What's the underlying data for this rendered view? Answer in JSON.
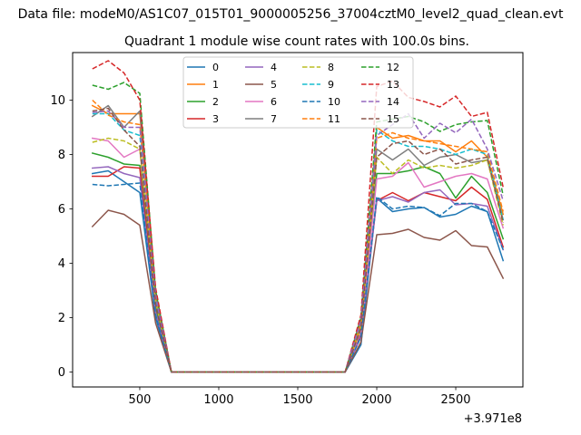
{
  "figure": {
    "suptitle": "Data file: modeM0/AS1C07_015T01_9000005256_37004cztM0_level2_quad_clean.evt",
    "title": "Quadrant 1 module wise count rates with 100.0s bins.",
    "x_offset_label": "+3.971e8"
  },
  "chart_data": {
    "type": "line",
    "title": "Quadrant 1 module wise count rates with 100.0s bins.",
    "xlabel": "",
    "ylabel": "",
    "xlim": [
      75,
      2925
    ],
    "ylim": [
      -0.55,
      11.75
    ],
    "x_offset": "+3.971e8",
    "grid": false,
    "legend_placement": "upper center, 4 columns",
    "x_ticks": [
      500,
      1000,
      1500,
      2000,
      2500
    ],
    "x_tick_labels": [
      "500",
      "1000",
      "1500",
      "2000",
      "2500"
    ],
    "y_ticks": [
      0,
      2,
      4,
      6,
      8,
      10
    ],
    "y_tick_labels": [
      "0",
      "2",
      "4",
      "6",
      "8",
      "10"
    ],
    "x": [
      200,
      300,
      400,
      500,
      600,
      700,
      800,
      900,
      1000,
      1100,
      1200,
      1300,
      1400,
      1500,
      1600,
      1700,
      1800,
      1900,
      2000,
      2100,
      2200,
      2300,
      2400,
      2500,
      2600,
      2700,
      2800
    ],
    "series": [
      {
        "name": "0",
        "color": "#1f77b4",
        "dash": "solid",
        "values": [
          7.3,
          7.4,
          7.0,
          6.6,
          2.0,
          0,
          0,
          0,
          0,
          0,
          0,
          0,
          0,
          0,
          0,
          0,
          0,
          1.0,
          6.4,
          5.9,
          6.0,
          6.05,
          5.7,
          5.8,
          6.1,
          5.9,
          4.1
        ]
      },
      {
        "name": "1",
        "color": "#ff7f0e",
        "dash": "solid",
        "values": [
          9.8,
          9.5,
          9.5,
          9.5,
          2.8,
          0,
          0,
          0,
          0,
          0,
          0,
          0,
          0,
          0,
          0,
          0,
          0,
          1.8,
          9.0,
          8.6,
          8.7,
          8.5,
          8.5,
          8.1,
          8.5,
          7.9,
          5.8
        ]
      },
      {
        "name": "2",
        "color": "#2ca02c",
        "dash": "solid",
        "values": [
          8.05,
          7.9,
          7.65,
          7.6,
          2.4,
          0,
          0,
          0,
          0,
          0,
          0,
          0,
          0,
          0,
          0,
          0,
          0,
          1.5,
          7.3,
          7.3,
          7.4,
          7.55,
          7.3,
          6.4,
          7.2,
          6.6,
          4.9
        ]
      },
      {
        "name": "3",
        "color": "#d62728",
        "dash": "solid",
        "values": [
          7.2,
          7.2,
          7.55,
          7.5,
          2.2,
          0,
          0,
          0,
          0,
          0,
          0,
          0,
          0,
          0,
          0,
          0,
          0,
          1.4,
          6.3,
          6.6,
          6.3,
          6.6,
          6.45,
          6.3,
          6.8,
          6.35,
          4.6
        ]
      },
      {
        "name": "4",
        "color": "#9467bd",
        "dash": "solid",
        "values": [
          7.5,
          7.55,
          7.3,
          7.15,
          2.2,
          0,
          0,
          0,
          0,
          0,
          0,
          0,
          0,
          0,
          0,
          0,
          0,
          1.3,
          6.3,
          6.45,
          6.25,
          6.6,
          6.7,
          6.15,
          6.2,
          6.1,
          4.5
        ]
      },
      {
        "name": "5",
        "color": "#8c564b",
        "dash": "solid",
        "values": [
          5.35,
          5.95,
          5.8,
          5.4,
          1.8,
          0,
          0,
          0,
          0,
          0,
          0,
          0,
          0,
          0,
          0,
          0,
          0,
          1.1,
          5.05,
          5.1,
          5.25,
          4.95,
          4.85,
          5.2,
          4.65,
          4.6,
          3.45
        ]
      },
      {
        "name": "6",
        "color": "#e377c2",
        "dash": "solid",
        "values": [
          8.6,
          8.5,
          7.9,
          8.2,
          2.6,
          0,
          0,
          0,
          0,
          0,
          0,
          0,
          0,
          0,
          0,
          0,
          0,
          1.5,
          7.1,
          7.2,
          7.7,
          6.8,
          7.0,
          7.2,
          7.3,
          7.1,
          5.3
        ]
      },
      {
        "name": "7",
        "color": "#7f7f7f",
        "dash": "solid",
        "values": [
          9.4,
          9.8,
          9.0,
          9.6,
          2.8,
          0,
          0,
          0,
          0,
          0,
          0,
          0,
          0,
          0,
          0,
          0,
          0,
          1.7,
          8.2,
          7.8,
          8.2,
          7.6,
          7.9,
          8.0,
          7.7,
          7.8,
          5.6
        ]
      },
      {
        "name": "8",
        "color": "#bcbd22",
        "dash": "dashed",
        "values": [
          8.45,
          8.6,
          8.5,
          8.2,
          2.6,
          0,
          0,
          0,
          0,
          0,
          0,
          0,
          0,
          0,
          0,
          0,
          0,
          1.6,
          7.9,
          7.3,
          7.8,
          7.5,
          7.6,
          7.5,
          7.6,
          7.8,
          5.4
        ]
      },
      {
        "name": "9",
        "color": "#17becf",
        "dash": "dashed",
        "values": [
          9.5,
          9.5,
          8.9,
          8.7,
          2.7,
          0,
          0,
          0,
          0,
          0,
          0,
          0,
          0,
          0,
          0,
          0,
          0,
          1.6,
          8.9,
          8.5,
          8.3,
          8.3,
          8.2,
          8.0,
          8.2,
          8.0,
          5.6
        ]
      },
      {
        "name": "10",
        "color": "#1f77b4",
        "dash": "dashed",
        "values": [
          6.9,
          6.85,
          6.9,
          6.95,
          2.1,
          0,
          0,
          0,
          0,
          0,
          0,
          0,
          0,
          0,
          0,
          0,
          0,
          1.3,
          6.45,
          6.0,
          6.1,
          6.05,
          5.75,
          6.2,
          6.2,
          5.9,
          4.5
        ]
      },
      {
        "name": "11",
        "color": "#ff7f0e",
        "dash": "dashed",
        "values": [
          10.0,
          9.45,
          9.2,
          9.1,
          2.9,
          0,
          0,
          0,
          0,
          0,
          0,
          0,
          0,
          0,
          0,
          0,
          0,
          1.8,
          8.6,
          8.8,
          8.6,
          8.5,
          8.4,
          8.3,
          8.2,
          8.1,
          5.9
        ]
      },
      {
        "name": "12",
        "color": "#2ca02c",
        "dash": "dashed",
        "values": [
          10.55,
          10.4,
          10.65,
          10.25,
          3.0,
          0,
          0,
          0,
          0,
          0,
          0,
          0,
          0,
          0,
          0,
          0,
          0,
          2.0,
          9.2,
          9.3,
          9.4,
          9.2,
          8.85,
          9.1,
          9.2,
          9.25,
          6.5
        ]
      },
      {
        "name": "13",
        "color": "#d62728",
        "dash": "dashed",
        "values": [
          11.15,
          11.45,
          11.0,
          10.0,
          3.1,
          0,
          0,
          0,
          0,
          0,
          0,
          0,
          0,
          0,
          0,
          0,
          0,
          2.1,
          10.5,
          10.7,
          10.1,
          9.95,
          9.75,
          10.15,
          9.4,
          9.55,
          6.8
        ]
      },
      {
        "name": "14",
        "color": "#9467bd",
        "dash": "dashed",
        "values": [
          9.55,
          9.6,
          9.0,
          9.0,
          2.8,
          0,
          0,
          0,
          0,
          0,
          0,
          0,
          0,
          0,
          0,
          0,
          0,
          1.9,
          8.7,
          9.1,
          9.5,
          8.6,
          9.15,
          8.8,
          9.3,
          8.2,
          6.3
        ]
      },
      {
        "name": "15",
        "color": "#8c564b",
        "dash": "dashed",
        "values": [
          9.6,
          9.7,
          8.9,
          8.3,
          2.5,
          0,
          0,
          0,
          0,
          0,
          0,
          0,
          0,
          0,
          0,
          0,
          0,
          1.6,
          7.9,
          8.4,
          8.5,
          8.0,
          8.2,
          7.65,
          7.8,
          7.9,
          5.5
        ]
      }
    ]
  }
}
